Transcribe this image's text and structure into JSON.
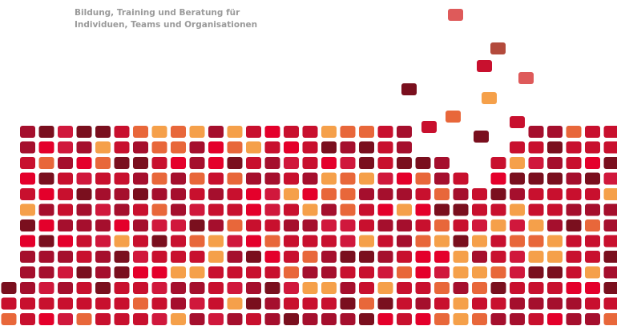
{
  "header": {
    "lines": [
      "Bildung, Training und Beratung für",
      "Individuen, Teams und Organisationen"
    ]
  }
}
